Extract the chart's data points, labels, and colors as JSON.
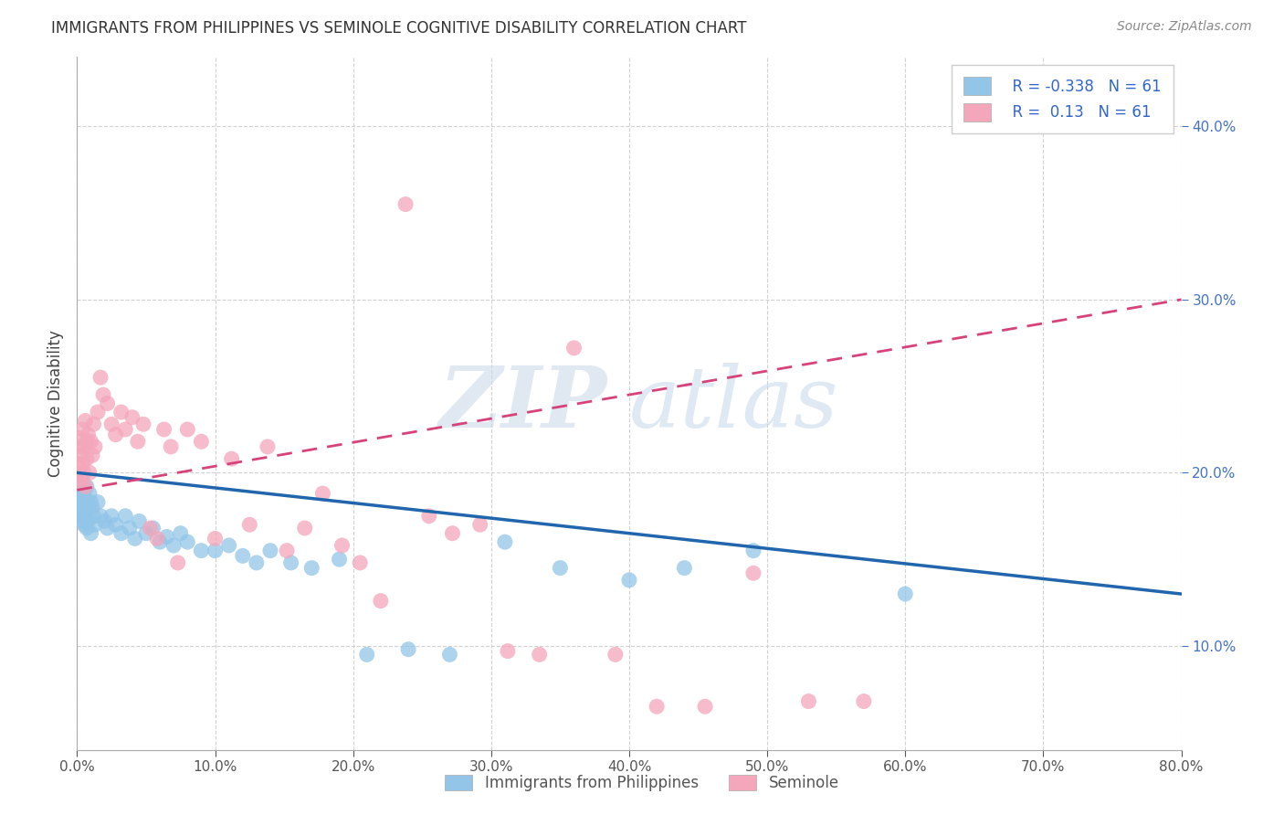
{
  "title": "IMMIGRANTS FROM PHILIPPINES VS SEMINOLE COGNITIVE DISABILITY CORRELATION CHART",
  "source": "Source: ZipAtlas.com",
  "xlabel_blue": "Immigrants from Philippines",
  "xlabel_pink": "Seminole",
  "ylabel": "Cognitive Disability",
  "R_blue": -0.338,
  "R_pink": 0.13,
  "N_blue": 61,
  "N_pink": 61,
  "xlim": [
    0.0,
    0.8
  ],
  "ylim": [
    0.04,
    0.44
  ],
  "xticks": [
    0.0,
    0.1,
    0.2,
    0.3,
    0.4,
    0.5,
    0.6,
    0.7,
    0.8
  ],
  "yticks": [
    0.1,
    0.2,
    0.3,
    0.4
  ],
  "color_blue": "#92c5e8",
  "color_pink": "#f4a6bb",
  "trend_blue": "#2166ac",
  "trend_pink": "#d6437a",
  "background": "#ffffff",
  "watermark_ZIP": "ZIP",
  "watermark_atlas": "atlas",
  "blue_scatter_x": [
    0.001,
    0.001,
    0.002,
    0.002,
    0.002,
    0.003,
    0.003,
    0.004,
    0.004,
    0.004,
    0.005,
    0.005,
    0.005,
    0.006,
    0.006,
    0.007,
    0.007,
    0.008,
    0.008,
    0.009,
    0.01,
    0.01,
    0.011,
    0.012,
    0.013,
    0.015,
    0.017,
    0.02,
    0.022,
    0.025,
    0.028,
    0.032,
    0.035,
    0.038,
    0.042,
    0.045,
    0.05,
    0.055,
    0.06,
    0.065,
    0.07,
    0.075,
    0.08,
    0.09,
    0.1,
    0.11,
    0.12,
    0.13,
    0.14,
    0.155,
    0.17,
    0.19,
    0.21,
    0.24,
    0.27,
    0.31,
    0.35,
    0.4,
    0.44,
    0.49,
    0.6
  ],
  "blue_scatter_y": [
    0.19,
    0.185,
    0.192,
    0.182,
    0.178,
    0.188,
    0.175,
    0.183,
    0.172,
    0.195,
    0.18,
    0.188,
    0.17,
    0.185,
    0.175,
    0.192,
    0.168,
    0.18,
    0.172,
    0.188,
    0.183,
    0.165,
    0.18,
    0.175,
    0.17,
    0.183,
    0.175,
    0.172,
    0.168,
    0.175,
    0.17,
    0.165,
    0.175,
    0.168,
    0.162,
    0.172,
    0.165,
    0.168,
    0.16,
    0.163,
    0.158,
    0.165,
    0.16,
    0.155,
    0.155,
    0.158,
    0.152,
    0.148,
    0.155,
    0.148,
    0.145,
    0.15,
    0.095,
    0.098,
    0.095,
    0.16,
    0.145,
    0.138,
    0.145,
    0.155,
    0.13
  ],
  "pink_scatter_x": [
    0.001,
    0.001,
    0.002,
    0.002,
    0.003,
    0.003,
    0.004,
    0.004,
    0.005,
    0.005,
    0.006,
    0.006,
    0.007,
    0.007,
    0.008,
    0.009,
    0.01,
    0.011,
    0.012,
    0.013,
    0.015,
    0.017,
    0.019,
    0.022,
    0.025,
    0.028,
    0.032,
    0.035,
    0.04,
    0.044,
    0.048,
    0.053,
    0.058,
    0.063,
    0.068,
    0.073,
    0.08,
    0.09,
    0.1,
    0.112,
    0.125,
    0.138,
    0.152,
    0.165,
    0.178,
    0.192,
    0.205,
    0.22,
    0.238,
    0.255,
    0.272,
    0.292,
    0.312,
    0.335,
    0.36,
    0.39,
    0.42,
    0.455,
    0.49,
    0.53,
    0.57
  ],
  "pink_scatter_y": [
    0.205,
    0.22,
    0.198,
    0.215,
    0.21,
    0.195,
    0.225,
    0.205,
    0.215,
    0.2,
    0.23,
    0.192,
    0.218,
    0.208,
    0.222,
    0.2,
    0.218,
    0.21,
    0.228,
    0.215,
    0.235,
    0.255,
    0.245,
    0.24,
    0.228,
    0.222,
    0.235,
    0.225,
    0.232,
    0.218,
    0.228,
    0.168,
    0.162,
    0.225,
    0.215,
    0.148,
    0.225,
    0.218,
    0.162,
    0.208,
    0.17,
    0.215,
    0.155,
    0.168,
    0.188,
    0.158,
    0.148,
    0.126,
    0.355,
    0.175,
    0.165,
    0.17,
    0.097,
    0.095,
    0.272,
    0.095,
    0.065,
    0.065,
    0.142,
    0.068,
    0.068
  ],
  "blue_trend_start_y": 0.2,
  "blue_trend_end_y": 0.13,
  "pink_trend_start_y": 0.19,
  "pink_trend_end_y": 0.3
}
